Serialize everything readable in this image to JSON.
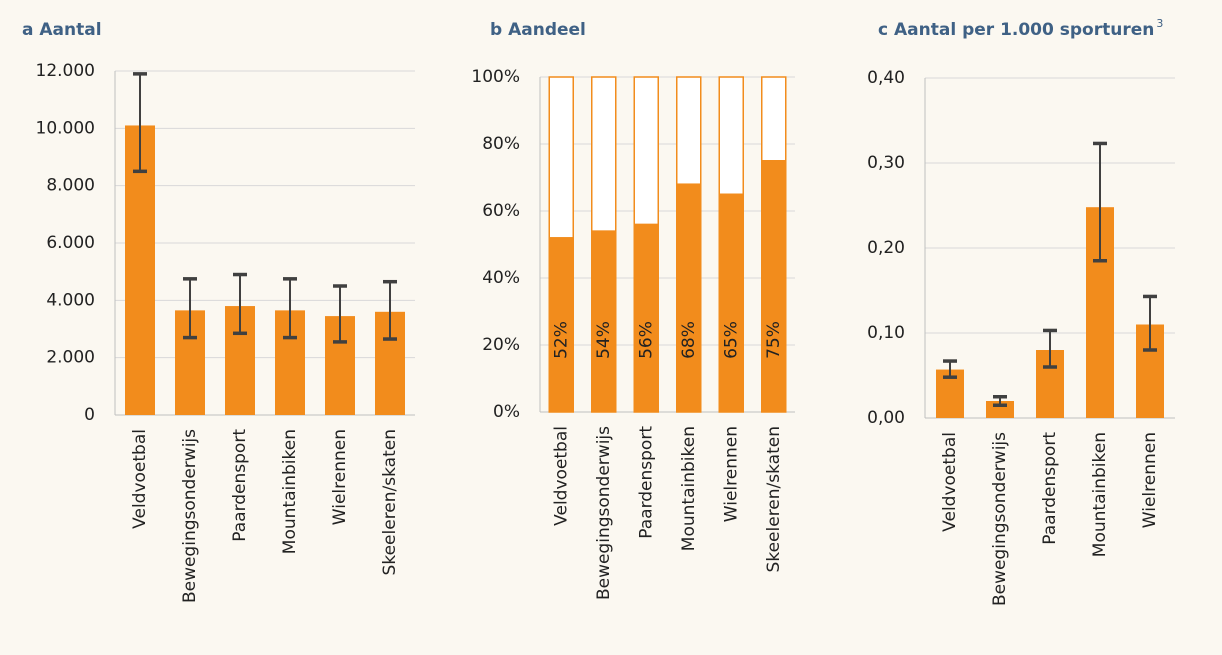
{
  "chart_data": [
    {
      "type": "bar",
      "title": "a Aantal",
      "categories": [
        "Veldvoetbal",
        "Bewegingsonderwijs",
        "Paardensport",
        "Mountainbiken",
        "Wielrennen",
        "Skeeleren/skaten"
      ],
      "values": [
        10100,
        3650,
        3800,
        3650,
        3450,
        3600
      ],
      "error_lower": [
        8500,
        2700,
        2850,
        2700,
        2550,
        2650
      ],
      "error_upper": [
        11900,
        4750,
        4900,
        4750,
        4500,
        4650
      ],
      "color": "#f28c1c",
      "error_color": "#404040",
      "ylim": [
        0,
        12000
      ],
      "yticks": [
        0,
        {
          "value": 2000,
          "label": "2.000"
        },
        {
          "value": 4000,
          "label": "4.000"
        },
        {
          "value": 6000,
          "label": "6.000"
        },
        {
          "value": 8000,
          "label": "8.000"
        },
        {
          "value": 10000,
          "label": "10.000"
        },
        {
          "value": 12000,
          "label": "12.000"
        }
      ],
      "grid": true
    },
    {
      "type": "stacked_bar",
      "title": "b Aandeel",
      "categories": [
        "Veldvoetbal",
        "Bewegingsonderwijs",
        "Paardensport",
        "Mountainbiken",
        "Wielrennen",
        "Skeeleren/skaten"
      ],
      "series": [
        {
          "color": "#f28c1c",
          "values": [
            52,
            54,
            56,
            68,
            65,
            75
          ],
          "value_labels": [
            "52%",
            "54%",
            "56%",
            "68%",
            "65%",
            "75%"
          ]
        },
        {
          "color": "#ffffff",
          "values": [
            48,
            46,
            44,
            32,
            35,
            25
          ]
        }
      ],
      "edge_color": "#f28c1c",
      "ylim": [
        0,
        100
      ],
      "yticks": [
        {
          "value": 0,
          "label": "0%"
        },
        {
          "value": 20,
          "label": "20%"
        },
        {
          "value": 40,
          "label": "40%"
        },
        {
          "value": 60,
          "label": "60%"
        },
        {
          "value": 80,
          "label": "80%"
        },
        {
          "value": 100,
          "label": "100%"
        }
      ],
      "grid": true
    },
    {
      "type": "bar",
      "title": "c Aantal per 1.000 sporturen",
      "title_sup": "3",
      "categories": [
        "Veldvoetbal",
        "Bewegingsonderwijs",
        "Paardensport",
        "Mountainbiken",
        "Wielrennen"
      ],
      "values": [
        0.057,
        0.02,
        0.08,
        0.248,
        0.11
      ],
      "error_lower": [
        0.048,
        0.015,
        0.06,
        0.185,
        0.08
      ],
      "error_upper": [
        0.067,
        0.025,
        0.103,
        0.323,
        0.143
      ],
      "color": "#f28c1c",
      "error_color": "#404040",
      "ylim": [
        0,
        0.4
      ],
      "yticks": [
        {
          "value": 0,
          "label": "0,00"
        },
        {
          "value": 0.1,
          "label": "0,10"
        },
        {
          "value": 0.2,
          "label": "0,20"
        },
        {
          "value": 0.3,
          "label": "0,30"
        },
        {
          "value": 0.4,
          "label": "0,40"
        }
      ],
      "grid": true
    }
  ]
}
